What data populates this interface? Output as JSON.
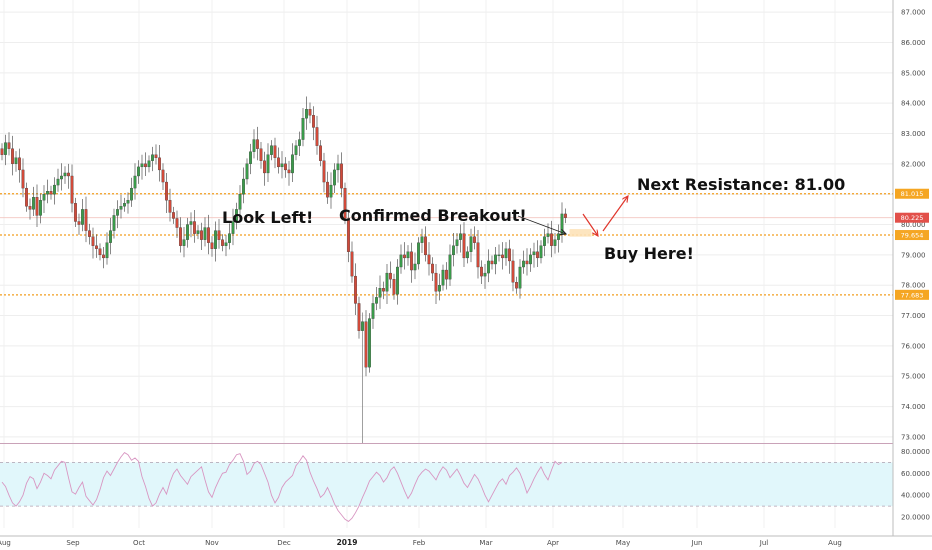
{
  "chart_data": {
    "type": "candlestick",
    "main_panel": {
      "y_ticks": [
        "87.000",
        "86.000",
        "85.000",
        "84.000",
        "83.000",
        "82.000",
        "81.000",
        "80.000",
        "79.000",
        "78.000",
        "77.000",
        "76.000",
        "75.000",
        "74.000",
        "73.000"
      ],
      "ylim": [
        72.8,
        87.4
      ],
      "x_ticks": [
        "Aug",
        "Sep",
        "Oct",
        "Nov",
        "Dec",
        "2019",
        "Feb",
        "Mar",
        "Apr",
        "May",
        "Jun",
        "Jul",
        "Aug"
      ],
      "x_ticks_bold": [
        "2019"
      ],
      "series": [
        {
          "closes": [
            82.3,
            82.7,
            82.5,
            82.0,
            82.2,
            81.8,
            81.2,
            80.6,
            80.5,
            80.9,
            80.3,
            80.8,
            81.0,
            81.1,
            81.0,
            81.3,
            81.5,
            81.6,
            81.7,
            81.6,
            80.7,
            80.1,
            80.0,
            80.5,
            79.8,
            79.6,
            79.3,
            79.2,
            79.0,
            78.9,
            79.4,
            79.8,
            80.3,
            80.5,
            80.6,
            80.7,
            80.8,
            81.2,
            81.6,
            81.9,
            82.0,
            81.9,
            82.1,
            82.3,
            82.2,
            81.8,
            81.4,
            80.8,
            80.4,
            80.2,
            79.9,
            79.3,
            79.5,
            80.0,
            80.1,
            79.7,
            79.8,
            79.5,
            79.9,
            79.4,
            79.2,
            79.8,
            79.5,
            79.3,
            79.4,
            79.7,
            80.1,
            80.5,
            81.0,
            81.5,
            82.0,
            82.4,
            82.8,
            82.5,
            82.1,
            81.7,
            82.3,
            82.6,
            82.2,
            81.9,
            82.0,
            81.8,
            81.7,
            82.3,
            82.6,
            82.8,
            83.5,
            83.8,
            83.6,
            83.2,
            82.6,
            82.1,
            81.4,
            80.9,
            81.3,
            81.8,
            82.0,
            81.2,
            80.2,
            79.1,
            78.3,
            77.4,
            76.5,
            76.8,
            75.3,
            76.9,
            77.4,
            77.6,
            77.9,
            77.8,
            78.4,
            78.2,
            77.7,
            78.6,
            79.0,
            78.9,
            79.1,
            78.5,
            78.7,
            79.4,
            79.6,
            79.0,
            78.7,
            78.4,
            77.8,
            78.0,
            78.5,
            78.2,
            79.0,
            79.3,
            79.5,
            79.7,
            78.9,
            79.1,
            79.6,
            79.4,
            78.6,
            78.3,
            78.4,
            78.8,
            78.7,
            79.0,
            79.0,
            78.9,
            79.2,
            78.8,
            78.1,
            77.9,
            78.6,
            78.8,
            78.7,
            79.0,
            79.1,
            78.9,
            79.3,
            79.6,
            79.7,
            79.3,
            79.5,
            79.7,
            80.35,
            80.225
          ]
        }
      ],
      "horizontal_lines": [
        {
          "value": 81.015,
          "label": "81.015"
        },
        {
          "value": 79.654,
          "label": "79.654"
        },
        {
          "value": 77.683,
          "label": "77.683"
        }
      ],
      "last_price": {
        "value": 80.225,
        "label": "80.225"
      },
      "annotations": [
        {
          "text": "Look Left!"
        },
        {
          "text": "Confirmed Breakout!"
        },
        {
          "text": "Next Resistance: 81.00"
        },
        {
          "text": "Buy Here!"
        }
      ]
    },
    "rsi_panel": {
      "y_ticks": [
        "80.0000",
        "60.0000",
        "40.0000",
        "20.0000"
      ],
      "ylim": [
        10,
        85
      ],
      "bands": [
        70,
        30
      ],
      "values": [
        52,
        48,
        40,
        33,
        30,
        34,
        40,
        51,
        57,
        55,
        46,
        52,
        60,
        58,
        55,
        63,
        67,
        71,
        70,
        56,
        43,
        41,
        47,
        52,
        39,
        35,
        31,
        36,
        45,
        56,
        62,
        58,
        64,
        70,
        75,
        79,
        77,
        72,
        74,
        71,
        57,
        48,
        37,
        30,
        33,
        41,
        47,
        41,
        52,
        60,
        64,
        58,
        54,
        50,
        57,
        60,
        63,
        66,
        54,
        43,
        38,
        47,
        54,
        60,
        61,
        68,
        72,
        77,
        78,
        71,
        59,
        62,
        69,
        71,
        68,
        60,
        52,
        40,
        33,
        38,
        47,
        52,
        55,
        58,
        67,
        71,
        76,
        72,
        61,
        53,
        46,
        38,
        41,
        47,
        40,
        32,
        26,
        22,
        18,
        16,
        19,
        24,
        30,
        38,
        45,
        53,
        57,
        61,
        58,
        52,
        56,
        63,
        66,
        60,
        52,
        44,
        37,
        42,
        50,
        57,
        61,
        64,
        62,
        58,
        54,
        61,
        66,
        63,
        56,
        60,
        64,
        58,
        51,
        47,
        53,
        59,
        55,
        48,
        40,
        34,
        40,
        46,
        52,
        55,
        50,
        58,
        61,
        65,
        60,
        52,
        42,
        48,
        55,
        61,
        66,
        59,
        54,
        63,
        71,
        68,
        70
      ]
    }
  }
}
